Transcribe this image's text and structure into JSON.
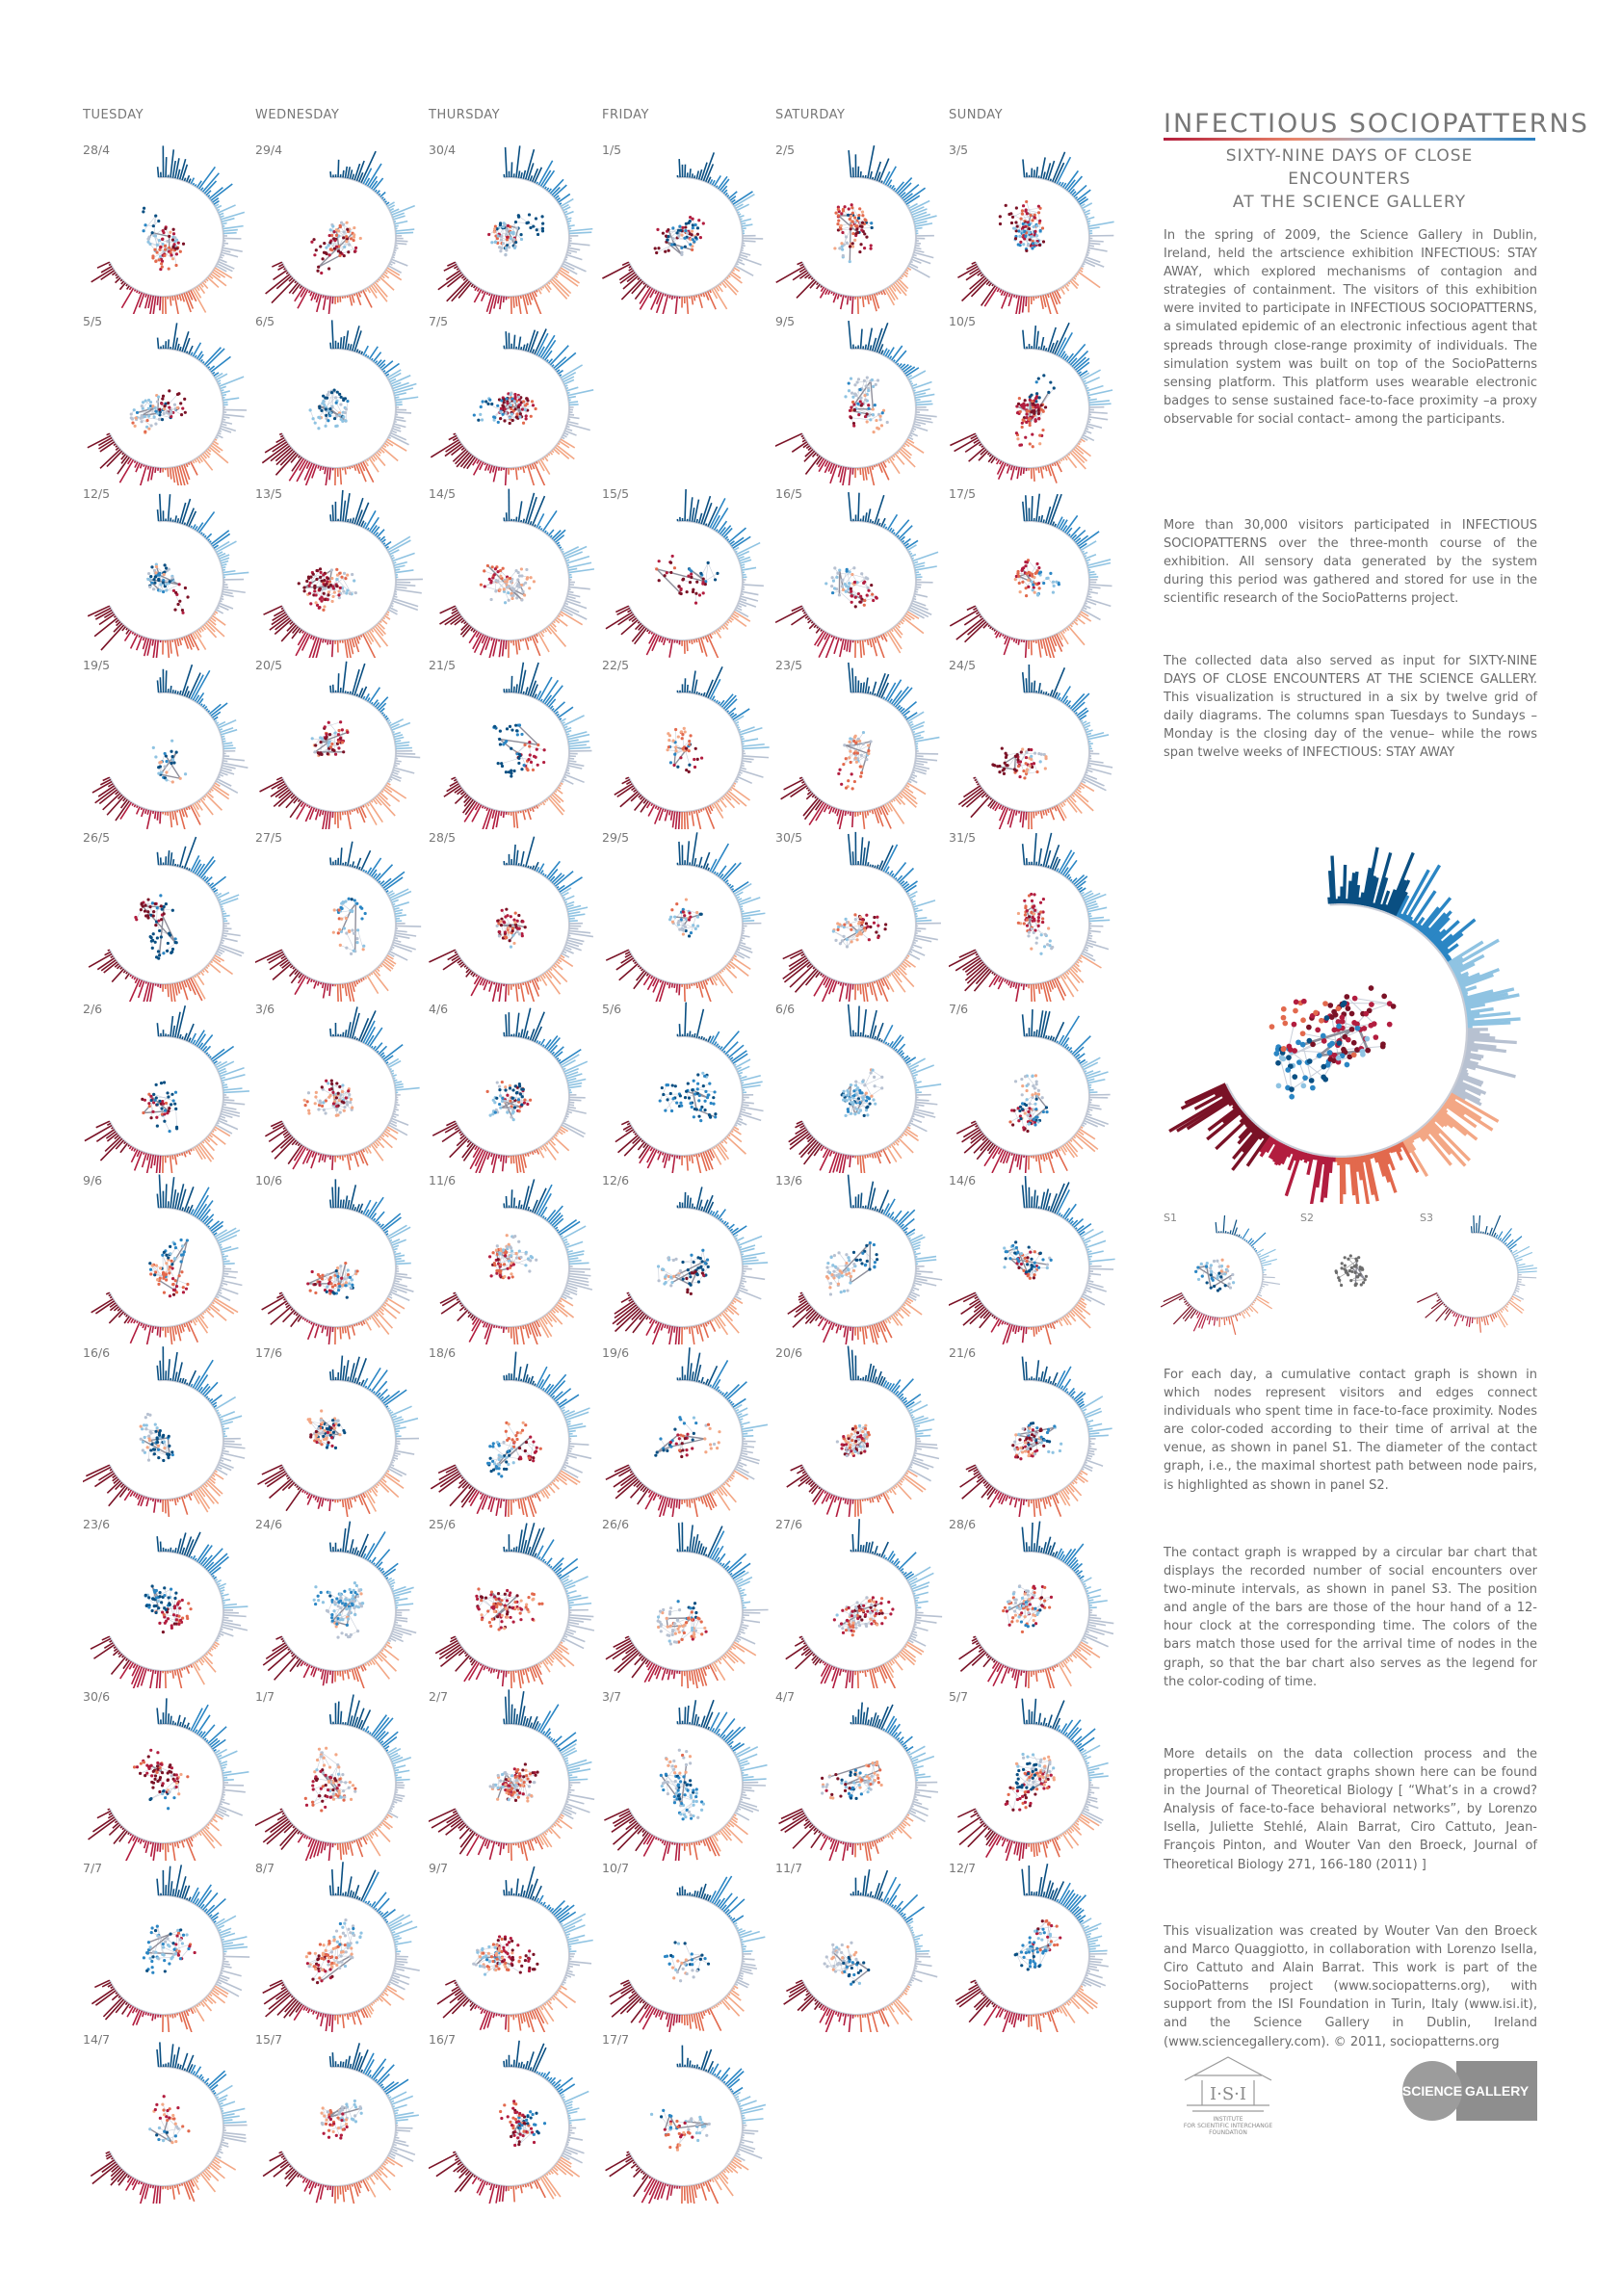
{
  "poster": {
    "title": "INFECTIOUS SOCIOPATTERNS",
    "subtitle_line1": "SIXTY-NINE DAYS OF CLOSE ENCOUNTERS",
    "subtitle_line2": "AT THE SCIENCE GALLERY"
  },
  "columns": [
    "TUESDAY",
    "WEDNESDAY",
    "THURSDAY",
    "FRIDAY",
    "SATURDAY",
    "SUNDAY"
  ],
  "weeks": [
    [
      "28/4",
      "29/4",
      "30/4",
      "1/5",
      "2/5",
      "3/5"
    ],
    [
      "5/5",
      "6/5",
      "7/5",
      "",
      "9/5",
      "10/5"
    ],
    [
      "12/5",
      "13/5",
      "14/5",
      "15/5",
      "16/5",
      "17/5"
    ],
    [
      "19/5",
      "20/5",
      "21/5",
      "22/5",
      "23/5",
      "24/5"
    ],
    [
      "26/5",
      "27/5",
      "28/5",
      "29/5",
      "30/5",
      "31/5"
    ],
    [
      "2/6",
      "3/6",
      "4/6",
      "5/6",
      "6/6",
      "7/6"
    ],
    [
      "9/6",
      "10/6",
      "11/6",
      "12/6",
      "13/6",
      "14/6"
    ],
    [
      "16/6",
      "17/6",
      "18/6",
      "19/6",
      "20/6",
      "21/6"
    ],
    [
      "23/6",
      "24/6",
      "25/6",
      "26/6",
      "27/6",
      "28/6"
    ],
    [
      "30/6",
      "1/7",
      "2/7",
      "3/7",
      "4/7",
      "5/7"
    ],
    [
      "7/7",
      "8/7",
      "9/7",
      "10/7",
      "11/7",
      "12/7"
    ],
    [
      "14/7",
      "15/7",
      "16/7",
      "17/7",
      "",
      ""
    ]
  ],
  "text": {
    "p1": "In the spring of 2009, the Science Gallery in Dublin, Ireland, held the artscience exhibition INFECTIOUS: STAY AWAY, which explored mechanisms of contagion and strategies of containment. The visitors of this exhibition were invited to participate in INFECTIOUS SOCIOPATTERNS, a simulated epidemic of an electronic infectious agent that spreads through close-range proximity of individuals. The simulation system was built on top of the SocioPatterns sensing platform. This platform uses wearable electronic badges to sense sustained face-to-face proximity –a proxy observable for social contact– among the participants.",
    "p2": "More than 30,000 visitors participated in INFECTIOUS SOCIOPATTERNS over the three-month course of the exhibition. All sensory data generated by the system during this period was gathered and stored for use in the scientific research of the SocioPatterns project.",
    "p3": "The collected data also served as input for SIXTY-NINE DAYS OF CLOSE ENCOUNTERS AT THE SCIENCE GALLERY. This visualization is structured in a six by twelve grid of daily diagrams. The columns span Tuesdays to Sundays –Monday is the closing day of the venue– while the rows span twelve weeks of INFECTIOUS: STAY AWAY",
    "p4": "For each day, a cumulative contact graph is shown in which nodes represent visitors and edges connect individuals who spent time in face-to-face proximity. Nodes are color-coded according to their time of arrival at the venue, as shown in panel S1. The diameter of the contact graph, i.e., the maximal shortest path between node pairs, is highlighted as shown in panel S2.",
    "p5": "The contact graph is wrapped by a circular bar chart that displays the recorded number of social encounters over two-minute intervals, as shown in panel S3. The position and angle of the bars are those of the hour hand of a 12-hour clock at the corresponding time. The colors of the bars match those used for the arrival time of nodes in the graph, so that the bar chart also serves as the legend for the color-coding of time.",
    "p6": "More details on the data collection process and the properties of the contact graphs shown here can be found in the Journal of Theoretical Biology [ “What’s in a crowd? Analysis of face-to-face behavioral networks”, by Lorenzo Isella, Juliette Stehlé, Alain Barrat, Ciro Cattuto, Jean-François Pinton, and Wouter Van den Broeck, Journal of Theoretical Biology 271, 166-180 (2011) ]",
    "p7": "This visualization was created by Wouter Van den Broeck and Marco Quaggiotto, in collaboration with Lorenzo Isella, Ciro Cattuto and Alain Barrat. This work is part of the SocioPatterns project (www.sociopatterns.org), with support from the ISI Foundation in Turin, Italy (www.isi.it), and the Science Gallery in Dublin, Ireland (www.sciencegallery.com).   © 2011, sociopatterns.org"
  },
  "panels": {
    "s1": "S1",
    "s2": "S2",
    "s3": "S3"
  },
  "logos": {
    "isi_line1": "INSTITUTE",
    "isi_line2": "FOR SCIENTIFIC INTERCHANGE",
    "isi_line3": "FOUNDATION",
    "isi_mark": "I·S·I",
    "sg_left": "SCIENCE",
    "sg_right": "GALLERY"
  },
  "colors": {
    "early_dark": "#0a4f82",
    "early": "#2b86c4",
    "mid_light": "#8fc3e2",
    "grey": "#b7c1d1",
    "late_light": "#f3a785",
    "late": "#e2694d",
    "latest": "#b21d3f",
    "latest_dark": "#7a1226"
  }
}
